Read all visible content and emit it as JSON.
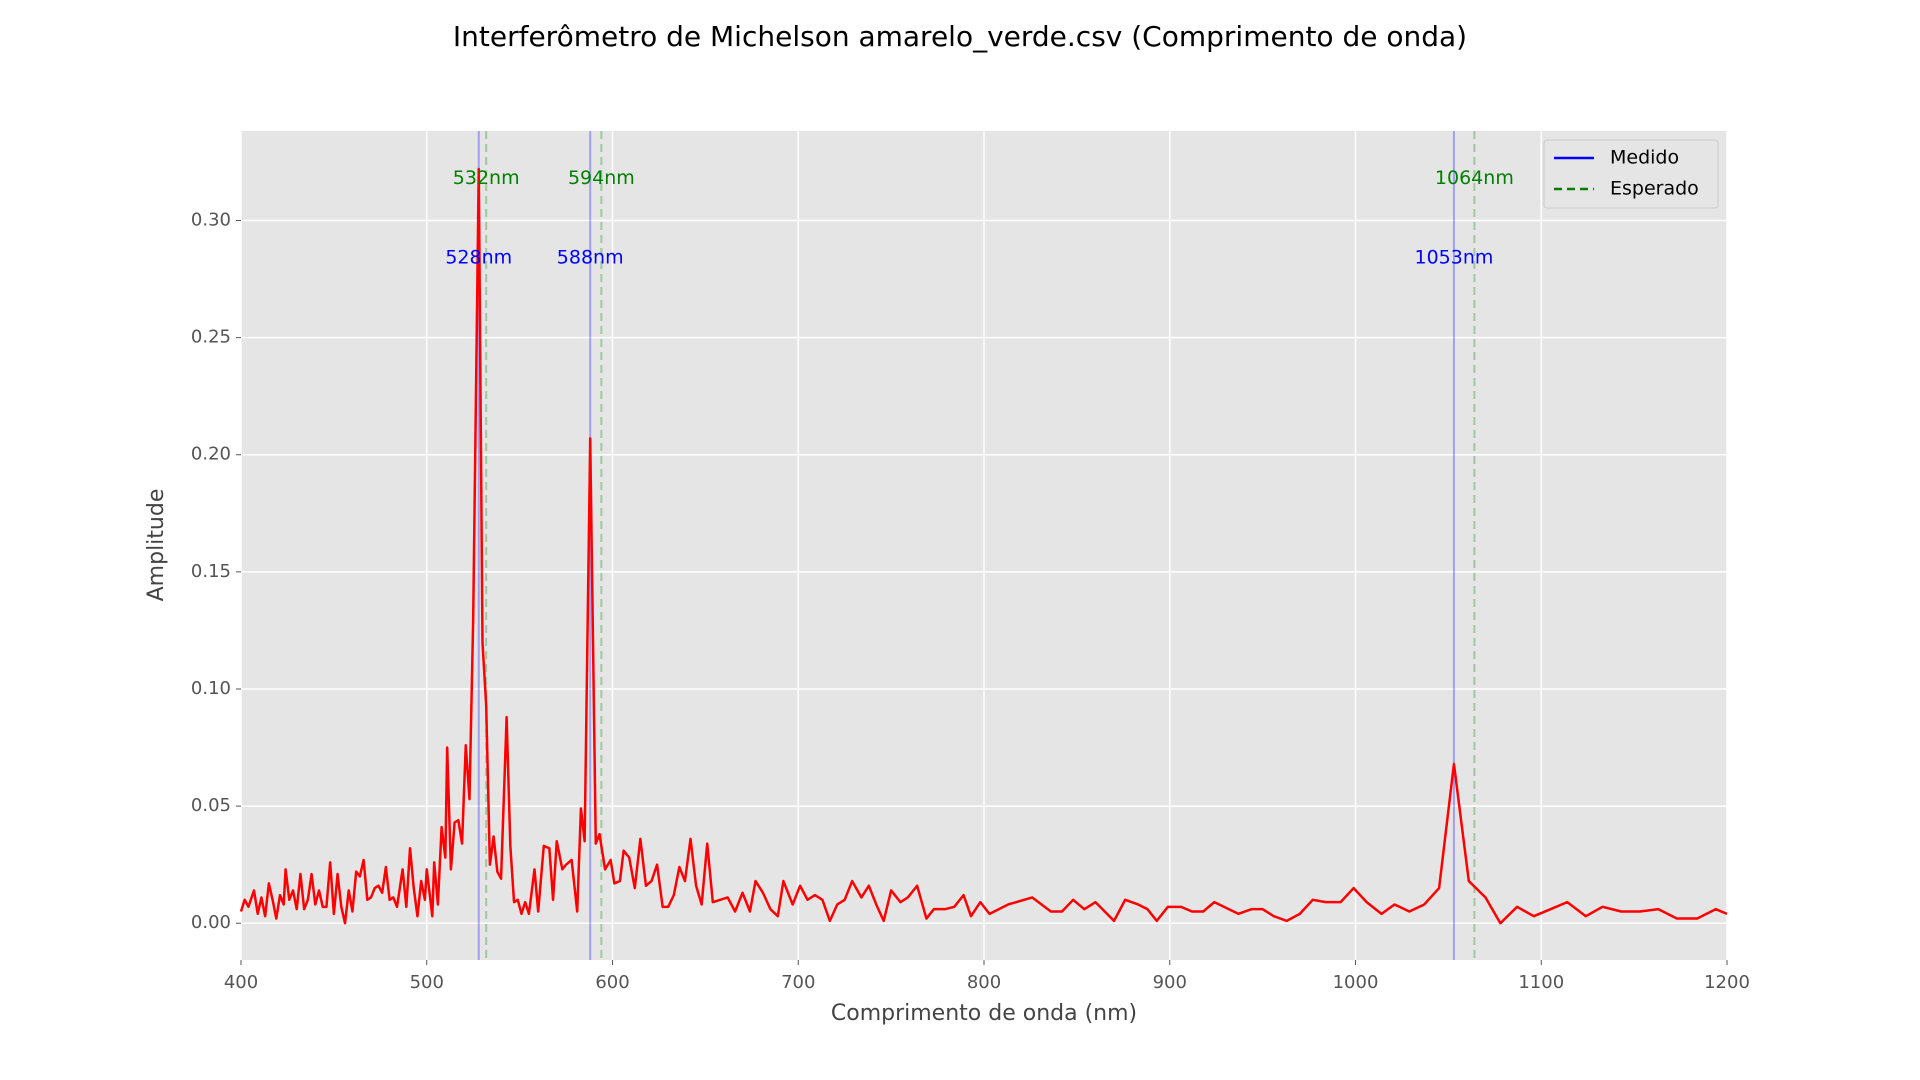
{
  "chart_data": {
    "type": "line",
    "title": "Interferômetro de Michelson amarelo_verde.csv (Comprimento de onda)",
    "x_label": "Comprimento de onda (nm)",
    "y_label": "Amplitude",
    "color": "#ff0000",
    "grid": true,
    "legend_position": "upper right",
    "xlim": [
      400,
      1200
    ],
    "ylim": [
      -0.0157,
      0.3382
    ],
    "xticks": [
      400,
      500,
      600,
      700,
      800,
      900,
      1000,
      1100,
      1200
    ],
    "yticks": [
      {
        "value": 0,
        "label": "0.00"
      },
      {
        "value": 0.05,
        "label": "0.05"
      },
      {
        "value": 0.1,
        "label": "0.10"
      },
      {
        "value": 0.15,
        "label": "0.15"
      },
      {
        "value": 0.2,
        "label": "0.20"
      },
      {
        "value": 0.25,
        "label": "0.25"
      },
      {
        "value": 0.3,
        "label": "0.30"
      }
    ],
    "x": [
      400,
      402,
      404,
      407,
      409,
      411,
      413,
      415,
      417,
      419,
      421,
      423,
      424,
      426,
      428,
      430,
      432,
      434,
      436,
      438,
      440,
      442,
      444,
      446,
      448,
      450,
      452,
      454,
      456,
      458,
      460,
      462,
      464,
      466,
      468,
      470,
      472,
      474,
      476,
      478,
      480,
      482,
      484,
      487,
      489,
      491,
      493,
      495,
      497,
      499,
      500,
      503,
      504,
      506,
      508,
      510,
      511,
      513,
      515,
      517,
      519,
      521,
      523,
      525,
      528,
      530,
      532,
      534,
      536,
      538,
      540,
      543,
      545,
      547,
      549,
      551,
      553,
      555,
      558,
      560,
      563,
      566,
      568,
      570,
      573,
      575,
      578,
      581,
      583,
      585,
      588,
      591,
      593,
      596,
      599,
      601,
      604,
      606,
      609,
      612,
      615,
      618,
      621,
      624,
      627,
      630,
      633,
      636,
      639,
      642,
      645,
      648,
      651,
      654,
      658,
      662,
      666,
      670,
      674,
      677,
      681,
      685,
      689,
      692,
      697,
      701,
      705,
      709,
      713,
      717,
      721,
      725,
      729,
      734,
      738,
      742,
      746,
      750,
      755,
      759,
      764,
      769,
      773,
      779,
      784,
      789,
      793,
      798,
      803,
      813,
      826,
      836,
      842,
      848,
      854,
      860,
      870,
      876,
      883,
      888,
      893,
      899,
      906,
      912,
      918,
      924,
      937,
      944,
      950,
      956,
      963,
      970,
      977,
      984,
      992,
      999,
      1006,
      1014,
      1021,
      1029,
      1037,
      1045,
      1053,
      1061,
      1070,
      1078,
      1087,
      1096,
      1105,
      1114,
      1124,
      1133,
      1143,
      1153,
      1163,
      1173,
      1184,
      1194,
      1200
    ],
    "values": [
      0.005,
      0.01,
      0.007,
      0.014,
      0.004,
      0.011,
      0.003,
      0.017,
      0.01,
      0.002,
      0.012,
      0.008,
      0.023,
      0.01,
      0.014,
      0.006,
      0.021,
      0.006,
      0.01,
      0.021,
      0.008,
      0.014,
      0.007,
      0.007,
      0.026,
      0.004,
      0.021,
      0.007,
      0.0,
      0.014,
      0.005,
      0.022,
      0.02,
      0.027,
      0.01,
      0.011,
      0.015,
      0.016,
      0.013,
      0.024,
      0.01,
      0.011,
      0.007,
      0.023,
      0.007,
      0.032,
      0.015,
      0.003,
      0.018,
      0.01,
      0.023,
      0.003,
      0.026,
      0.008,
      0.041,
      0.028,
      0.075,
      0.023,
      0.043,
      0.044,
      0.034,
      0.076,
      0.053,
      0.13,
      0.322,
      0.12,
      0.093,
      0.025,
      0.037,
      0.022,
      0.019,
      0.088,
      0.033,
      0.009,
      0.01,
      0.004,
      0.009,
      0.004,
      0.023,
      0.005,
      0.033,
      0.032,
      0.01,
      0.035,
      0.023,
      0.025,
      0.027,
      0.005,
      0.049,
      0.035,
      0.207,
      0.034,
      0.038,
      0.023,
      0.027,
      0.017,
      0.018,
      0.031,
      0.028,
      0.015,
      0.036,
      0.016,
      0.018,
      0.025,
      0.007,
      0.007,
      0.012,
      0.024,
      0.018,
      0.036,
      0.016,
      0.008,
      0.034,
      0.009,
      0.01,
      0.011,
      0.005,
      0.013,
      0.005,
      0.018,
      0.013,
      0.006,
      0.003,
      0.018,
      0.008,
      0.016,
      0.01,
      0.012,
      0.01,
      0.001,
      0.008,
      0.01,
      0.018,
      0.011,
      0.016,
      0.008,
      0.001,
      0.014,
      0.009,
      0.011,
      0.016,
      0.002,
      0.006,
      0.006,
      0.007,
      0.012,
      0.003,
      0.009,
      0.004,
      0.008,
      0.011,
      0.005,
      0.005,
      0.01,
      0.006,
      0.009,
      0.001,
      0.01,
      0.008,
      0.006,
      0.001,
      0.007,
      0.007,
      0.005,
      0.005,
      0.009,
      0.004,
      0.006,
      0.006,
      0.003,
      0.001,
      0.004,
      0.01,
      0.009,
      0.009,
      0.015,
      0.009,
      0.004,
      0.008,
      0.005,
      0.008,
      0.015,
      0.068,
      0.018,
      0.011,
      0.0,
      0.007,
      0.003,
      0.006,
      0.009,
      0.003,
      0.007,
      0.005,
      0.005,
      0.006,
      0.002,
      0.002,
      0.006,
      0.004
    ],
    "vlines": [
      {
        "name": "Medido",
        "color": "#0000ff",
        "style": "solid",
        "label_y": 0.284,
        "lines": [
          {
            "value": 528,
            "label": "528nm"
          },
          {
            "value": 588,
            "label": "588nm"
          },
          {
            "value": 1053,
            "label": "1053nm"
          }
        ]
      },
      {
        "name": "Esperado",
        "color": "#008000",
        "style": "dashed",
        "label_y": 0.318,
        "lines": [
          {
            "value": 532,
            "label": "532nm"
          },
          {
            "value": 594,
            "label": "594nm"
          },
          {
            "value": 1064,
            "label": "1064nm"
          }
        ]
      }
    ]
  }
}
